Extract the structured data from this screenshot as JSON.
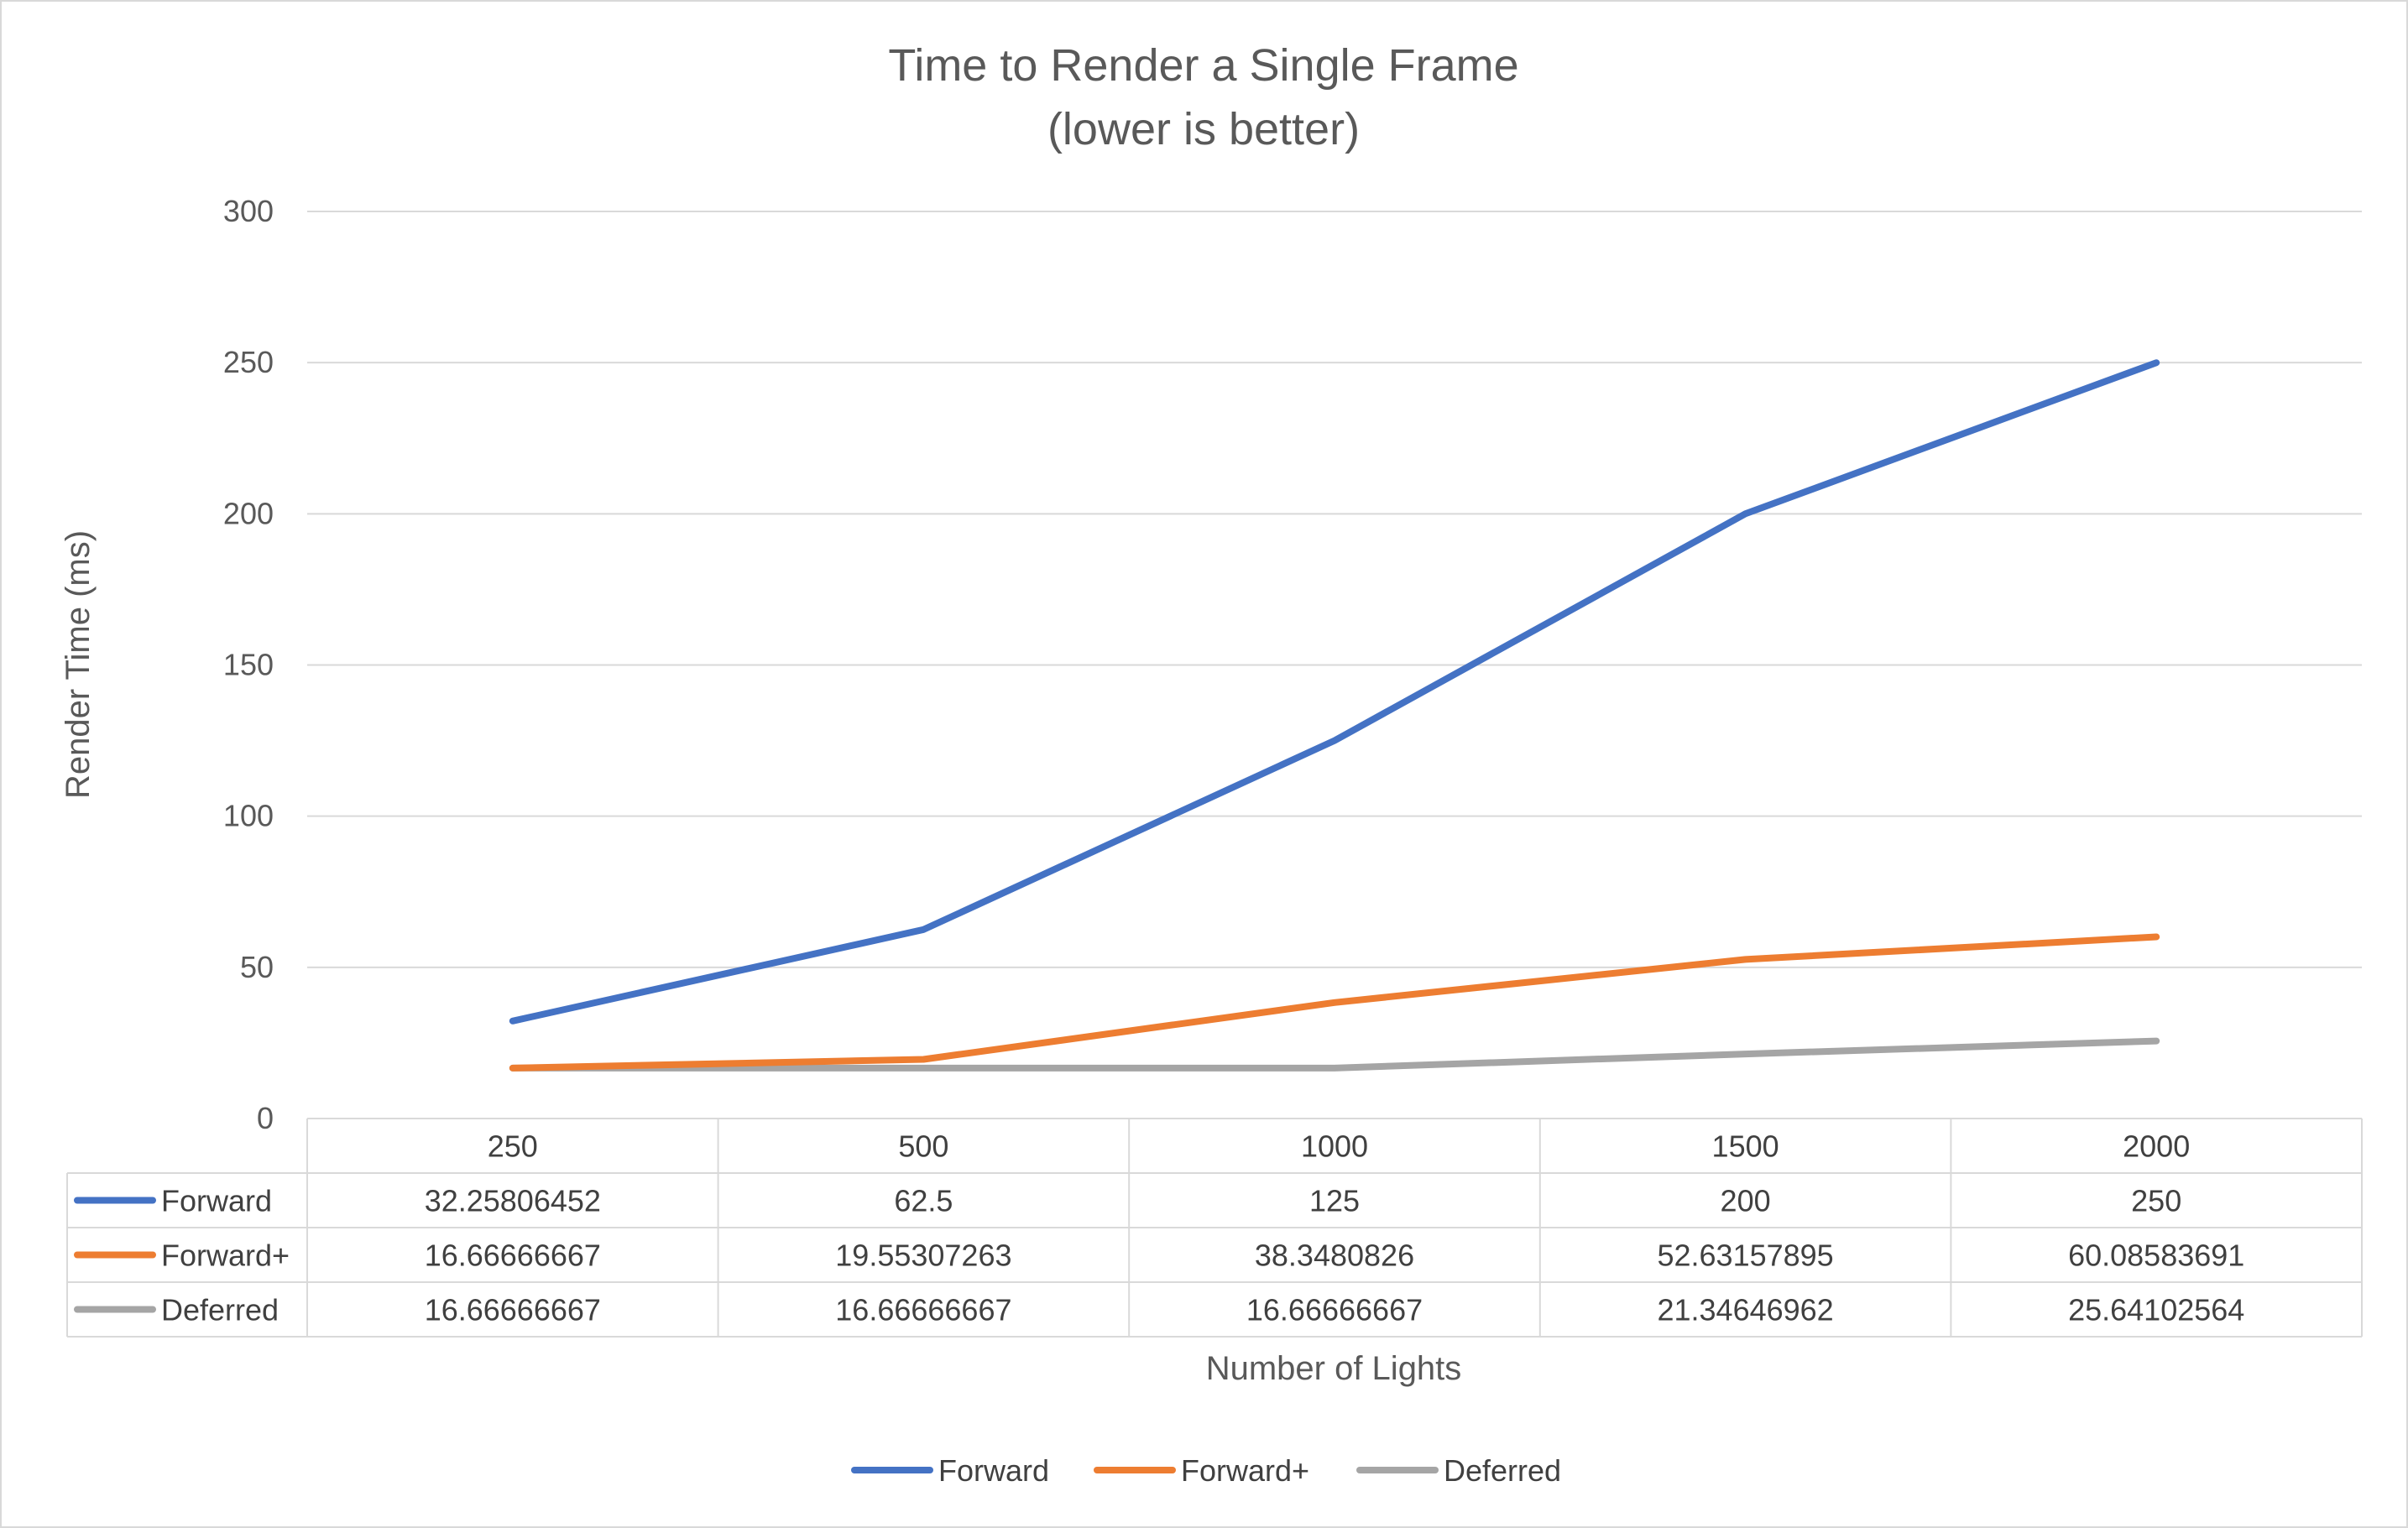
{
  "chart_data": {
    "type": "line",
    "title": "Time to Render a Single Frame",
    "subtitle": "(lower is better)",
    "xlabel": "Number of Lights",
    "ylabel": "Render Time (ms)",
    "categories": [
      "250",
      "500",
      "1000",
      "1500",
      "2000"
    ],
    "ylim": [
      0,
      300
    ],
    "yticks": [
      0,
      50,
      100,
      150,
      200,
      250,
      300
    ],
    "grid": true,
    "legend_position": "bottom",
    "data_table": true,
    "series": [
      {
        "name": "Forward",
        "color": "#4472c4",
        "values": [
          32.25806452,
          62.5,
          125,
          200,
          250
        ],
        "labels": [
          "32.25806452",
          "62.5",
          "125",
          "200",
          "250"
        ]
      },
      {
        "name": "Forward+",
        "color": "#ed7d31",
        "values": [
          16.66666667,
          19.55307263,
          38.3480826,
          52.63157895,
          60.08583691
        ],
        "labels": [
          "16.66666667",
          "19.55307263",
          "38.3480826",
          "52.63157895",
          "60.08583691"
        ]
      },
      {
        "name": "Deferred",
        "color": "#a5a5a5",
        "values": [
          16.66666667,
          16.66666667,
          16.66666667,
          21.34646962,
          25.64102564
        ],
        "labels": [
          "16.66666667",
          "16.66666667",
          "16.66666667",
          "21.34646962",
          "25.64102564"
        ]
      }
    ]
  }
}
